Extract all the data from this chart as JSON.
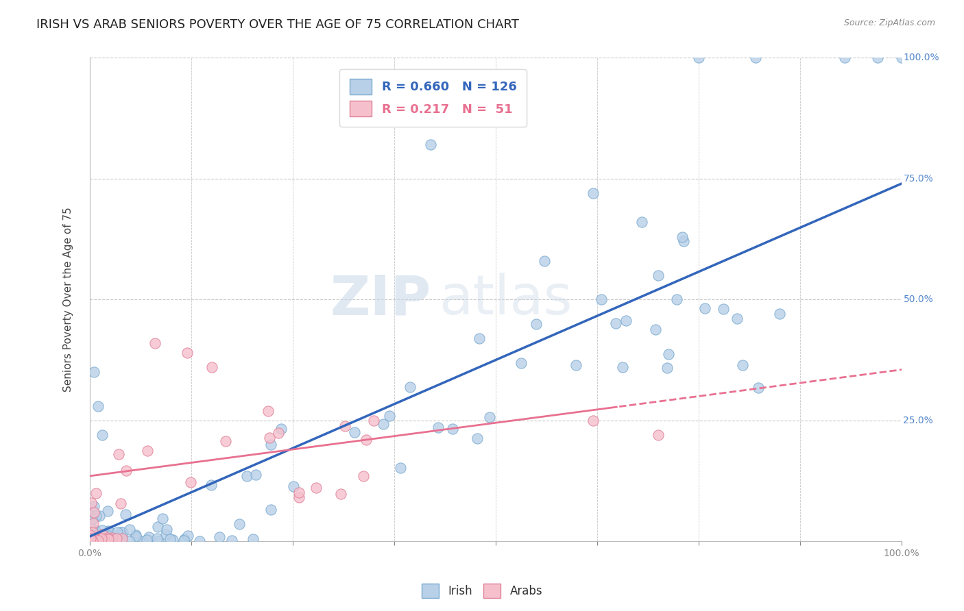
{
  "title": "IRISH VS ARAB SENIORS POVERTY OVER THE AGE OF 75 CORRELATION CHART",
  "source": "Source: ZipAtlas.com",
  "ylabel": "Seniors Poverty Over the Age of 75",
  "xlabel": "",
  "xlim": [
    0.0,
    1.0
  ],
  "ylim": [
    0.0,
    1.0
  ],
  "irish_color": "#b8d0e8",
  "irish_edge_color": "#7aaad0",
  "arab_color": "#f5c0cc",
  "arab_edge_color": "#e08098",
  "irish_line_color": "#3366bb",
  "arab_line_color": "#e87090",
  "R_irish": 0.66,
  "N_irish": 126,
  "R_arab": 0.217,
  "N_arab": 51,
  "background_color": "#ffffff",
  "grid_color": "#c8c8c8",
  "watermark_zip": "ZIP",
  "watermark_atlas": "atlas",
  "irish_seed": 42,
  "arab_seed": 123,
  "legend_irish": "Irish",
  "legend_arab": "Arabs",
  "title_fontsize": 13,
  "axis_label_fontsize": 11,
  "tick_fontsize": 10,
  "legend_fontsize": 13
}
